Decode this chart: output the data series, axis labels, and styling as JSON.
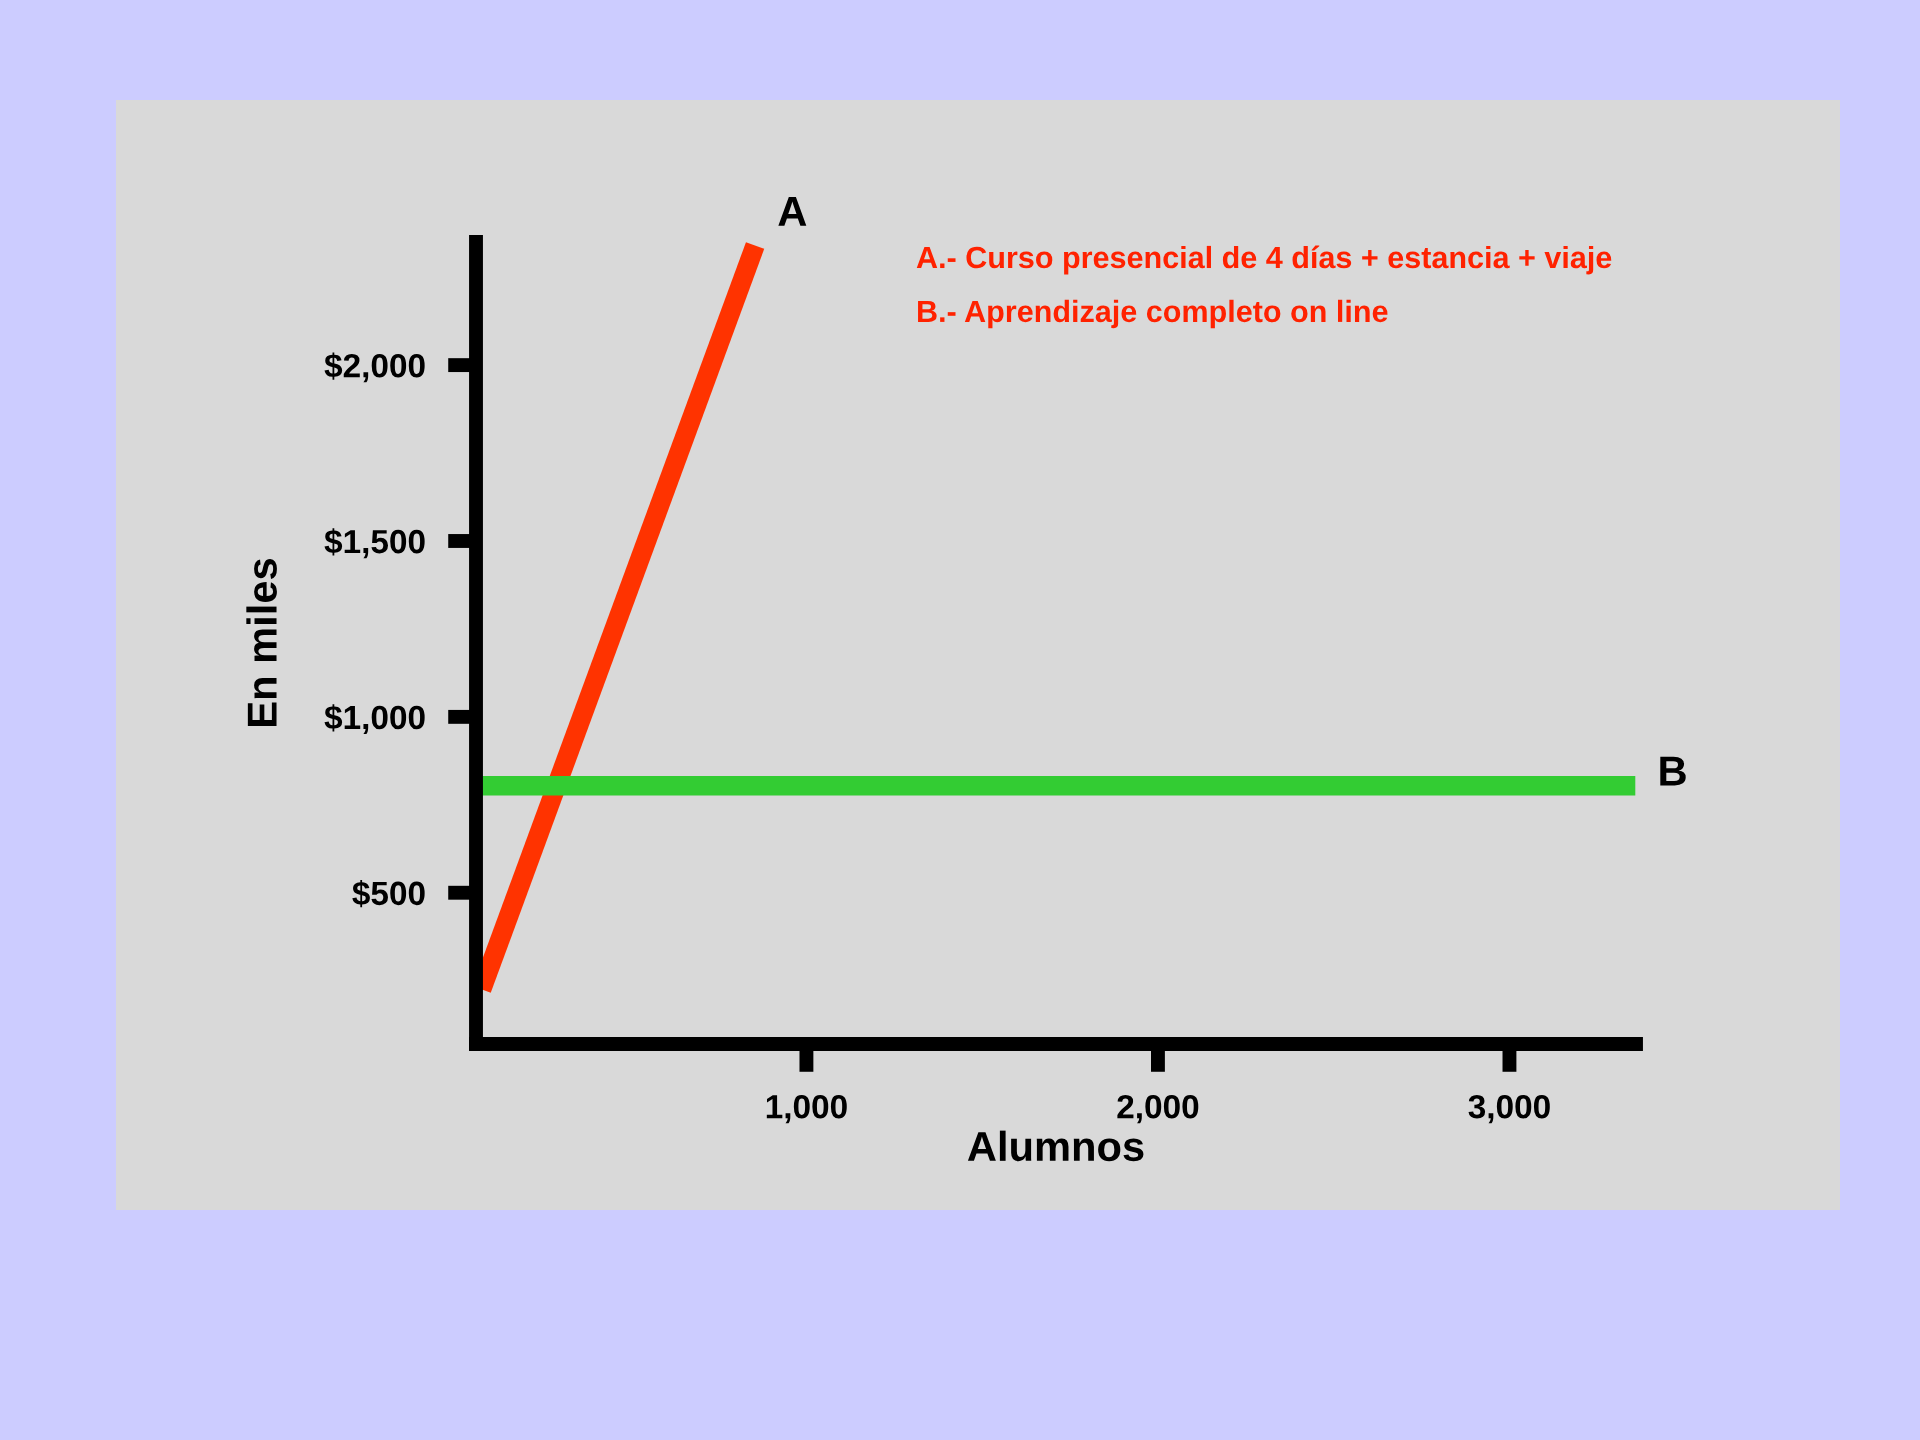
{
  "chart_data": {
    "type": "line",
    "xlabel": "Alumnos",
    "ylabel": "En miles",
    "series": [
      {
        "name": "A",
        "color": "#ff3300",
        "x": [
          76,
          854
        ],
        "values": [
          225,
          2340
        ]
      },
      {
        "name": "B",
        "color": "#33cc33",
        "x": [
          76,
          3358
        ],
        "values": [
          804,
          804
        ]
      }
    ],
    "xlim": [
      60,
      3360
    ],
    "ylim": [
      70,
      2350
    ],
    "xticks": [
      {
        "value": 1000,
        "label": "1,000"
      },
      {
        "value": 2000,
        "label": "2,000"
      },
      {
        "value": 3000,
        "label": "3,000"
      }
    ],
    "yticks": [
      {
        "value": 500,
        "label": "$500"
      },
      {
        "value": 1000,
        "label": "$1,000"
      },
      {
        "value": 1500,
        "label": "$1,500"
      },
      {
        "value": 2000,
        "label": "$2,000"
      }
    ],
    "annotations": [
      "A.- Curso presencial de 4 días + estancia + viaje",
      "B.- Aprendizaje completo on line"
    ],
    "grid": false,
    "legend": false,
    "marker": "none",
    "line_style": "solid"
  }
}
